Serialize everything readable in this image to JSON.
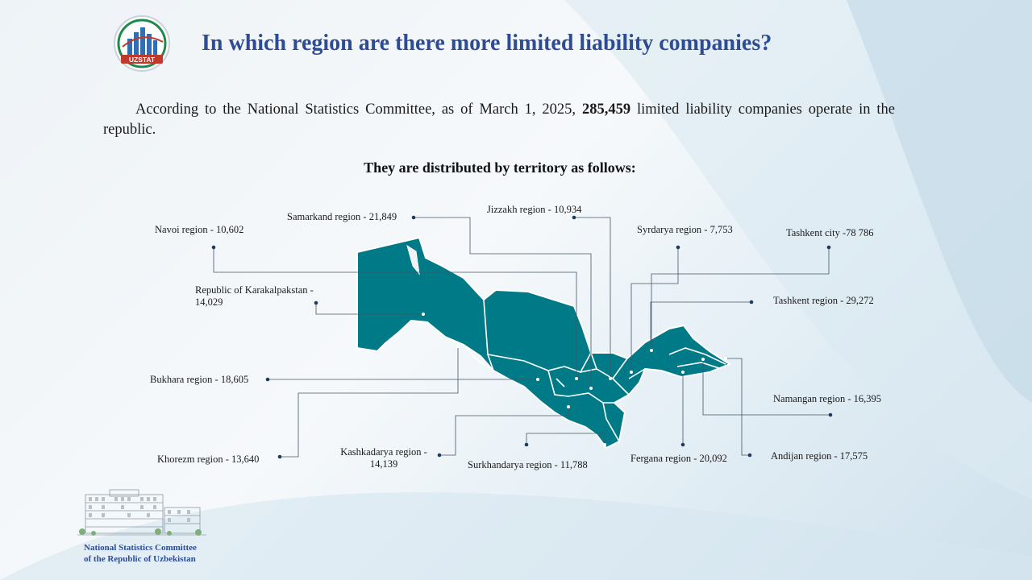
{
  "logo": {
    "text": "UZSTAT",
    "icon": "uzstat-logo-icon"
  },
  "title": "In which region are there more limited liability companies?",
  "intro": {
    "before": "According to the National Statistics Committee, as of March 1, 2025,",
    "total": "285,459",
    "after": "limited liability companies operate in the republic."
  },
  "subtitle": "They are distributed by territory as follows:",
  "colors": {
    "map_fill": "#007a87",
    "title": "#2e4c94",
    "leader": "#445566"
  },
  "regions": [
    {
      "key": "navoi",
      "name": "Navoi region",
      "value": "10,602",
      "text": "Navoi region - 10,602"
    },
    {
      "key": "samarkand",
      "name": "Samarkand region",
      "value": "21,849",
      "text": "Samarkand region - 21,849"
    },
    {
      "key": "jizzakh",
      "name": "Jizzakh region",
      "value": "10,934",
      "text": "Jizzakh region - 10,934"
    },
    {
      "key": "syrdarya",
      "name": "Syrdarya region",
      "value": "7,753",
      "text": "Syrdarya region - 7,753"
    },
    {
      "key": "tashkent-city",
      "name": "Tashkent city",
      "value": "78 786",
      "text": "Tashkent city -78 786"
    },
    {
      "key": "karakalpakstan",
      "name": "Republic of Karakalpakstan",
      "value": "14,029",
      "text_line1": "Republic of Karakalpakstan -",
      "text_line2": "14,029"
    },
    {
      "key": "tashkent-region",
      "name": "Tashkent region",
      "value": "29,272",
      "text": "Tashkent region - 29,272"
    },
    {
      "key": "bukhara",
      "name": "Bukhara region",
      "value": "18,605",
      "text": "Bukhara region - 18,605"
    },
    {
      "key": "namangan",
      "name": "Namangan region",
      "value": "16,395",
      "text": "Namangan region - 16,395"
    },
    {
      "key": "khorezm",
      "name": "Khorezm region",
      "value": "13,640",
      "text": "Khorezm region - 13,640"
    },
    {
      "key": "kashkadarya",
      "name": "Kashkadarya region",
      "value": "14,139",
      "text_line1": "Kashkadarya region -",
      "text_line2": "14,139"
    },
    {
      "key": "surkhandarya",
      "name": "Surkhandarya region",
      "value": "11,788",
      "text": "Surkhandarya region - 11,788"
    },
    {
      "key": "fergana",
      "name": "Fergana region",
      "value": "20,092",
      "text": "Fergana region - 20,092"
    },
    {
      "key": "andijan",
      "name": "Andijan region",
      "value": "17,575",
      "text": "Andijan region - 17,575"
    }
  ],
  "footer": {
    "line1": "National Statistics Committee",
    "line2": "of the Republic of Uzbekistan"
  }
}
